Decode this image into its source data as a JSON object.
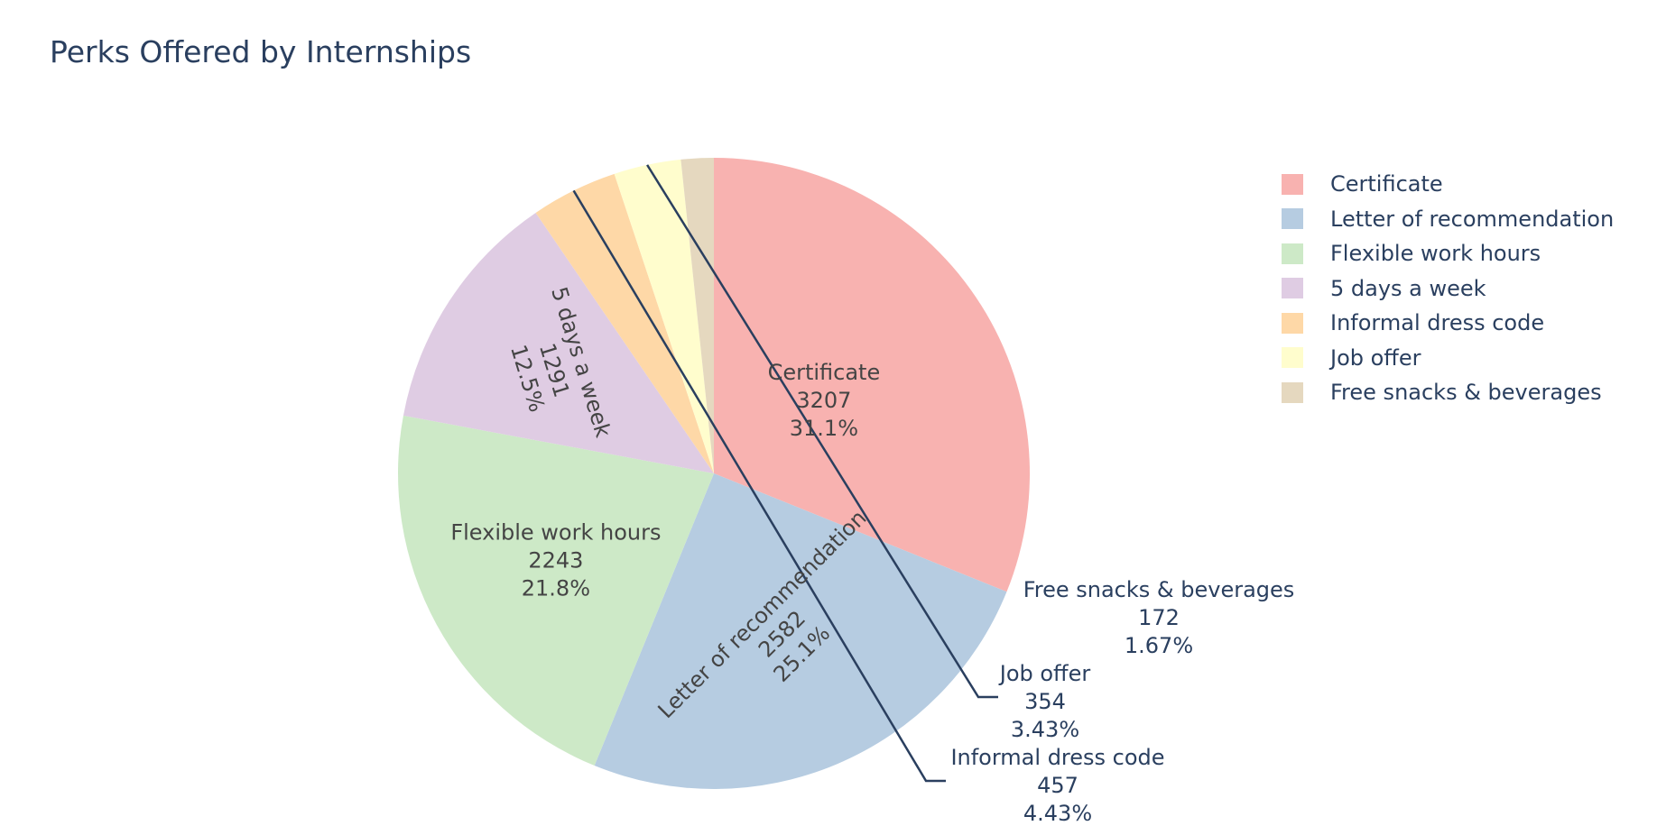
{
  "chart_data": {
    "type": "pie",
    "title": "Perks Offered by Internships",
    "legend_position": "right",
    "slices": [
      {
        "label": "Certificate",
        "value": 3207,
        "percent_label": "31.1%",
        "color": "#F8B2B0"
      },
      {
        "label": "Letter of recommendation",
        "value": 2582,
        "percent_label": "25.1%",
        "color": "#B6CCE1"
      },
      {
        "label": "Flexible work hours",
        "value": 2243,
        "percent_label": "21.8%",
        "color": "#CDE9C7"
      },
      {
        "label": "5 days a week",
        "value": 1291,
        "percent_label": "12.5%",
        "color": "#DFCCE3"
      },
      {
        "label": "Informal dress code",
        "value": 457,
        "percent_label": "4.43%",
        "color": "#FED8A7"
      },
      {
        "label": "Job offer",
        "value": 354,
        "percent_label": "3.43%",
        "color": "#FFFDCD"
      },
      {
        "label": "Free snacks & beverages",
        "value": 172,
        "percent_label": "1.67%",
        "color": "#E5D8BF"
      }
    ]
  }
}
